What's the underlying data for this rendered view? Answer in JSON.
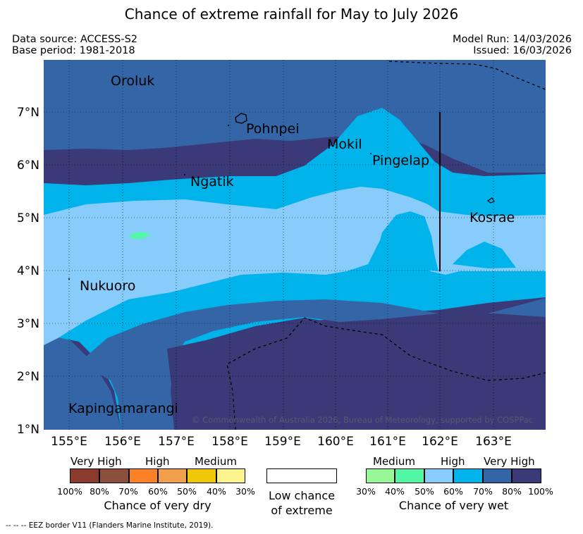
{
  "title": "Chance of extreme rainfall for May to July 2026",
  "meta": {
    "data_source": "Data source: ACCESS-S2",
    "base_period": "Base period: 1981-2018",
    "model_run": "Model Run: 14/03/2026",
    "issued": "Issued: 16/03/2026"
  },
  "map": {
    "lat_labels": [
      "7°N",
      "6°N",
      "5°N",
      "4°N",
      "3°N",
      "2°N",
      "1°N"
    ],
    "lon_labels": [
      "155°E",
      "156°E",
      "157°E",
      "158°E",
      "159°E",
      "160°E",
      "161°E",
      "162°E",
      "163°E"
    ],
    "places": [
      "Oroluk",
      "Pohnpei",
      "Mokil",
      "Pingelap",
      "Ngatik",
      "Kosrae",
      "Nukuoro",
      "Kapingamarangi"
    ],
    "copyright": "© Commonwealth of Australia 2026, Bureau of Meteorology, supported by COSPPac"
  },
  "legend": {
    "dry": {
      "levels": [
        "Very High",
        "High",
        "Medium"
      ],
      "colors": [
        "#8b3a2e",
        "#8c4f3c",
        "#fb8128",
        "#f0a04b",
        "#f0c808",
        "#fbf38d"
      ],
      "ticks": [
        "100%",
        "80%",
        "70%",
        "60%",
        "50%",
        "40%",
        "30%"
      ],
      "caption": "Chance of very dry"
    },
    "low": {
      "caption_line1": "Low chance",
      "caption_line2": "of extreme"
    },
    "wet": {
      "levels": [
        "Medium",
        "High",
        "Very High"
      ],
      "colors": [
        "#98f796",
        "#52f7a6",
        "#87ccfb",
        "#00b3ea",
        "#3466a7",
        "#3a3a78"
      ],
      "ticks": [
        "30%",
        "40%",
        "50%",
        "60%",
        "70%",
        "80%",
        "100%"
      ],
      "caption": "Chance of very wet"
    }
  },
  "eez_note": "-- -- -- EEZ border V11 (Flanders Marine Institute, 2019)."
}
